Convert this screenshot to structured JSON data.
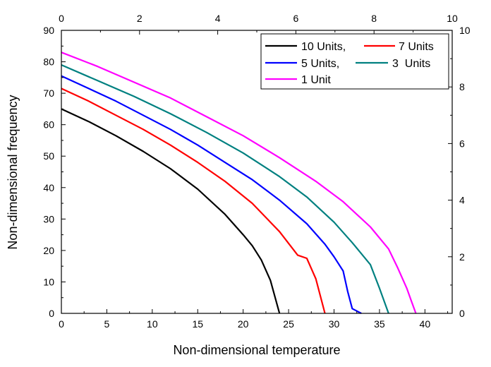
{
  "chart_data": {
    "type": "line",
    "title": "",
    "xlabel": "Non-dimensional temperature",
    "ylabel": "Non-dimensional frequency",
    "xlim": [
      0,
      43
    ],
    "ylim": [
      0,
      90
    ],
    "xticks": [
      0,
      5,
      10,
      15,
      20,
      25,
      30,
      35,
      40
    ],
    "yticks": [
      0,
      10,
      20,
      30,
      40,
      50,
      60,
      70,
      80,
      90
    ],
    "top_axis": {
      "lim": [
        0,
        10
      ],
      "ticks": [
        0,
        2,
        4,
        6,
        8,
        10
      ]
    },
    "right_axis": {
      "lim": [
        0,
        10
      ],
      "ticks": [
        0,
        2,
        4,
        6,
        8,
        10
      ]
    },
    "grid": false,
    "legend_position": "top-right",
    "legend_labels": [
      "10 Units,",
      "7 Units",
      "5 Units,",
      "3  Units",
      "1 Unit"
    ],
    "series": [
      {
        "name": "10 Units,",
        "color": "#000000",
        "x": [
          0,
          3,
          6,
          9,
          12,
          15,
          18,
          20,
          21,
          22,
          23,
          24
        ],
        "y": [
          65,
          61,
          56.5,
          51.5,
          46,
          39.5,
          31.5,
          25,
          21.5,
          17,
          10.5,
          0
        ]
      },
      {
        "name": "7 Units",
        "color": "#ff0000",
        "x": [
          0,
          3,
          6,
          9,
          12,
          15,
          18,
          21,
          24,
          26,
          27,
          28,
          29
        ],
        "y": [
          71.5,
          67.5,
          63,
          58.5,
          53.5,
          48,
          42,
          35,
          26,
          18.5,
          17.5,
          11,
          0
        ]
      },
      {
        "name": "5 Units,",
        "color": "#0000ff",
        "x": [
          0,
          3,
          6,
          9,
          12,
          15,
          18,
          21,
          24,
          27,
          29,
          30,
          31,
          31.5,
          32,
          33
        ],
        "y": [
          75.5,
          71.5,
          67.5,
          63,
          58.5,
          53.5,
          48,
          42.5,
          36,
          28.5,
          22,
          18,
          13.5,
          7,
          1.5,
          0
        ]
      },
      {
        "name": "3  Units",
        "color": "#008080",
        "x": [
          0,
          4,
          8,
          12,
          16,
          20,
          24,
          27,
          30,
          32,
          34,
          35,
          36
        ],
        "y": [
          79,
          74,
          69,
          63.5,
          57.5,
          51,
          43.5,
          37,
          29,
          22.5,
          15.5,
          8,
          0
        ]
      },
      {
        "name": "1 Unit",
        "color": "#ff00ff",
        "x": [
          0,
          4,
          8,
          12,
          16,
          20,
          24,
          28,
          31,
          34,
          36,
          37,
          38,
          38.5,
          39
        ],
        "y": [
          83,
          78.5,
          73.5,
          68.5,
          62.5,
          56.5,
          49.5,
          42,
          35.5,
          27.5,
          20.5,
          14.5,
          8,
          4,
          0
        ]
      }
    ]
  }
}
